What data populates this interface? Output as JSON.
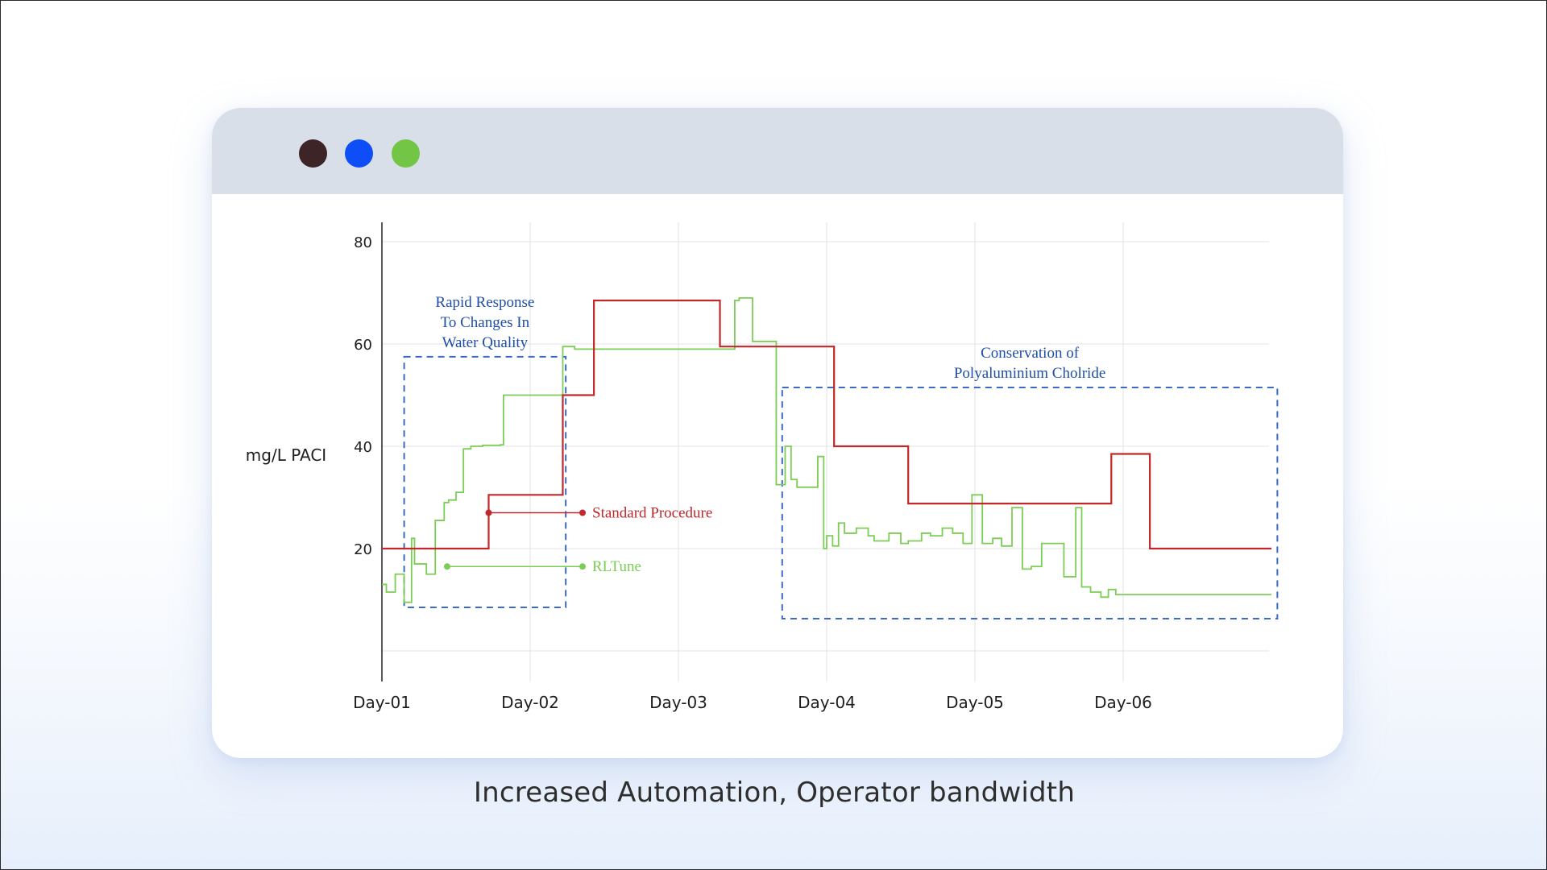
{
  "window": {
    "buttons": [
      {
        "name": "close",
        "color": "#3d2426"
      },
      {
        "name": "minimize",
        "color": "#0d4ef7"
      },
      {
        "name": "maximize",
        "color": "#72c545"
      }
    ]
  },
  "caption": "Increased Automation, Operator bandwidth",
  "colors": {
    "standard": "#c0282b",
    "rltune": "#7ccd55",
    "annotation": "#1f4ea6",
    "box": "#3a6bc4",
    "grid": "#e3e3e3",
    "axis": "#222222"
  },
  "chart_data": {
    "type": "line",
    "title": "",
    "xlabel": "",
    "ylabel": "mg/L PACI",
    "xlim": [
      0,
      6
    ],
    "ylim": [
      -3,
      82
    ],
    "x_ticks": [
      {
        "x": 0,
        "label": "Day-01"
      },
      {
        "x": 1,
        "label": "Day-02"
      },
      {
        "x": 2,
        "label": "Day-03"
      },
      {
        "x": 3,
        "label": "Day-04"
      },
      {
        "x": 4,
        "label": "Day-05"
      },
      {
        "x": 5,
        "label": "Day-06"
      }
    ],
    "y_ticks": [
      {
        "y": 80,
        "label": "80"
      },
      {
        "y": 60,
        "label": "60"
      },
      {
        "y": 40,
        "label": "40"
      },
      {
        "y": 20,
        "label": "20"
      }
    ],
    "grid": true,
    "series": [
      {
        "name": "Standard Procedure",
        "step": true,
        "x": [
          0,
          0.72,
          0.72,
          1.22,
          1.22,
          1.43,
          1.43,
          2.28,
          2.28,
          3.05,
          3.05,
          3.55,
          3.55,
          4.92,
          4.92,
          5.18,
          5.18,
          6.0
        ],
        "y": [
          20,
          20,
          30.5,
          30.5,
          50,
          50,
          68.5,
          68.5,
          59.5,
          59.5,
          40,
          40,
          28.8,
          29.2,
          38.5,
          38.5,
          20,
          20
        ]
      },
      {
        "name": "RLTune",
        "step": true,
        "x": [
          0,
          0.03,
          0.09,
          0.15,
          0.2,
          0.22,
          0.3,
          0.36,
          0.42,
          0.45,
          0.5,
          0.55,
          0.6,
          0.68,
          0.8,
          0.82,
          1.1,
          1.22,
          1.3,
          2.38,
          2.41,
          2.5,
          2.66,
          2.72,
          2.76,
          2.8,
          2.94,
          2.98,
          3.0,
          3.04,
          3.08,
          3.12,
          3.2,
          3.28,
          3.32,
          3.42,
          3.5,
          3.55,
          3.64,
          3.7,
          3.78,
          3.85,
          3.92,
          3.98,
          4.05,
          4.12,
          4.18,
          4.25,
          4.32,
          4.38,
          4.45,
          4.52,
          4.6,
          4.68,
          4.72,
          4.78,
          4.85,
          4.9,
          4.95,
          5.1,
          5.18,
          5.25,
          5.32,
          5.42,
          5.48,
          5.52,
          5.58,
          5.62,
          5.68,
          5.75,
          5.82,
          6.0
        ],
        "y": [
          13,
          11.5,
          15,
          9.5,
          22,
          17,
          15,
          25.5,
          29,
          29.5,
          31,
          39.5,
          40,
          40.2,
          40.3,
          50,
          50,
          59.5,
          59,
          68.5,
          69,
          60.5,
          32.5,
          40,
          33.5,
          32,
          38,
          20,
          22.5,
          20.5,
          25,
          23,
          24,
          22.5,
          21.5,
          23,
          21,
          21.5,
          23,
          22.5,
          24,
          23,
          21,
          30.5,
          21,
          22,
          20.5,
          28,
          16,
          16.5,
          21,
          21,
          14.5,
          28,
          12.5,
          11.5,
          10.5,
          12,
          11,
          11,
          11,
          11,
          11,
          11,
          11,
          11,
          11,
          11,
          11,
          11,
          11,
          11
        ]
      }
    ],
    "annotations": [
      {
        "text_lines": [
          "Rapid Response",
          "To Changes In",
          "Water Quality"
        ],
        "box": {
          "x0": 0.15,
          "x1": 1.24,
          "y0": 8.5,
          "y1": 57.5
        }
      },
      {
        "text_lines": [
          "Conservation of",
          "Polyaluminium Cholride"
        ],
        "box": {
          "x0": 2.7,
          "x1": 6.04,
          "y0": 6.3,
          "y1": 51.5
        }
      }
    ],
    "legend": "inline",
    "legend_entries": [
      "Standard Procedure",
      "RLTune"
    ]
  }
}
